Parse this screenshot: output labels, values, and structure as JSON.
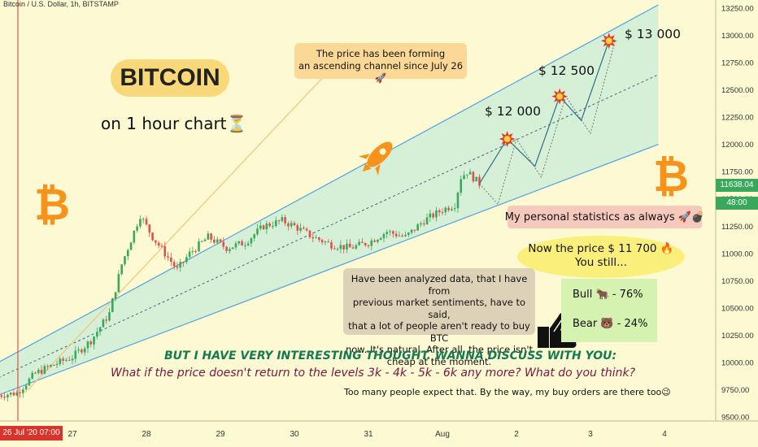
{
  "symbol_title": "Bitcoin / U.S. Dollar, 1h, BITSTAMP",
  "brand_label": "BITCOIN",
  "timeframe_label": "on 1 hour chart⏳",
  "channel_note": {
    "line1": "The price has been forming",
    "line2": "an ascending channel since July 26 🚀"
  },
  "targets": [
    {
      "label": "$ 12 000",
      "price": 12050
    },
    {
      "label": "$ 12 500",
      "price": 12440
    },
    {
      "label": "$ 13 000",
      "price": 12950
    }
  ],
  "stats_box": "My personal statistics as always 🚀💣",
  "now_price": {
    "line1": "Now the price $ 11 700 🔥",
    "line2": "You still..."
  },
  "sentiment": {
    "bull": {
      "label": "Bull",
      "icon": "bull-icon",
      "value": "-  76%"
    },
    "bear": {
      "label": "Bear",
      "icon": "bear-icon",
      "value": "- 24%"
    }
  },
  "analysis_note": {
    "line1": "Have been analyzed data, that I have from",
    "line2": "previous market sentiments, have to said,",
    "line3": "that a lot of people aren't ready to buy BTC",
    "line4": "now. It's natural. After all, the price isn't",
    "line5": "cheap at the moment."
  },
  "thought_heading": "BUT I HAVE  VERY INTERESTING THOUGHT. WANNA DISCUSS WITH YOU:",
  "thought_question": "What if the price doesn't return to the levels 3k - 4k - 5k - 6k any more? What do you think?",
  "buy_orders_note": "Too many people expect that. By the way, my buy orders are there too😉",
  "current_price_tag": "11638.04",
  "countdown_tag": "48:00",
  "cursor_date_tag": "26 Jul '20   07:00",
  "colors": {
    "background": "#fdf9d3",
    "channel_fill": "#cfeed8",
    "channel_line": "#4fa3e0",
    "up_candle": "#3aa85a",
    "down_candle": "#e0504a",
    "accent_orange": "#f7931a"
  },
  "chart_data": {
    "type": "candlestick",
    "y_axis": {
      "min": 9500,
      "max": 13250,
      "tick_labels": [
        "13250.00",
        "13000.00",
        "12750.00",
        "12500.00",
        "12250.00",
        "12000.00",
        "11750.00",
        "11500.00",
        "11250.00",
        "11000.00",
        "10750.00",
        "10500.00",
        "10250.00",
        "10000.00",
        "9750.00",
        "9500.00"
      ]
    },
    "x_axis": {
      "tick_labels": [
        "27",
        "28",
        "29",
        "30",
        "31",
        "Aug",
        "2",
        "3",
        "4"
      ]
    },
    "channel": {
      "upper": [
        [
          "Jul 26 00:00",
          10000
        ],
        [
          "Aug 3 22:00",
          13280
        ]
      ],
      "lower": [
        [
          "Jul 26 00:00",
          9700
        ],
        [
          "Aug 3 22:00",
          12000
        ]
      ],
      "mid": [
        [
          "Jul 26 00:00",
          9860
        ],
        [
          "Aug 3 22:00",
          12640
        ]
      ]
    },
    "price_path_key": [
      [
        "Jul 26 00:00",
        9700
      ],
      [
        "Jul 26 06:00",
        9720
      ],
      [
        "Jul 26 12:00",
        9900
      ],
      [
        "Jul 26 18:00",
        9980
      ],
      [
        "Jul 27 00:00",
        10050
      ],
      [
        "Jul 27 06:00",
        10200
      ],
      [
        "Jul 27 12:00",
        10450
      ],
      [
        "Jul 27 16:00",
        10900
      ],
      [
        "Jul 27 20:00",
        11200
      ],
      [
        "Jul 27 22:00",
        11350
      ],
      [
        "Jul 28 02:00",
        11150
      ],
      [
        "Jul 28 06:00",
        11000
      ],
      [
        "Jul 28 10:00",
        10850
      ],
      [
        "Jul 28 14:00",
        11000
      ],
      [
        "Jul 28 20:00",
        11150
      ],
      [
        "Jul 29 02:00",
        11050
      ],
      [
        "Jul 29 08:00",
        11100
      ],
      [
        "Jul 29 14:00",
        11250
      ],
      [
        "Jul 29 20:00",
        11300
      ],
      [
        "Jul 30 00:00",
        11250
      ],
      [
        "Jul 30 06:00",
        11150
      ],
      [
        "Jul 30 12:00",
        11080
      ],
      [
        "Jul 30 18:00",
        11050
      ],
      [
        "Jul 31 00:00",
        11100
      ],
      [
        "Jul 31 06:00",
        11200
      ],
      [
        "Jul 31 12:00",
        11150
      ],
      [
        "Jul 31 18:00",
        11300
      ],
      [
        "Aug 1 00:00",
        11400
      ],
      [
        "Aug 1 04:00",
        11450
      ],
      [
        "Aug 1 06:00",
        11700
      ],
      [
        "Aug 1 08:00",
        11750
      ],
      [
        "Aug 1 12:00",
        11640
      ]
    ],
    "projection_solid": [
      [
        "Aug 1 12:00",
        11640
      ],
      [
        "Aug 1 21:00",
        12050
      ],
      [
        "Aug 2 06:00",
        11800
      ],
      [
        "Aug 2 14:00",
        12440
      ],
      [
        "Aug 2 21:00",
        12220
      ],
      [
        "Aug 3 06:00",
        12950
      ]
    ],
    "projection_dotted": [
      [
        "Aug 1 12:00",
        11640
      ],
      [
        "Aug 1 18:00",
        11450
      ],
      [
        "Aug 2 00:00",
        12050
      ],
      [
        "Aug 2 08:00",
        11700
      ],
      [
        "Aug 2 16:00",
        12440
      ],
      [
        "Aug 3 00:00",
        12100
      ],
      [
        "Aug 3 08:00",
        12950
      ]
    ],
    "current_price": 11638.04
  }
}
